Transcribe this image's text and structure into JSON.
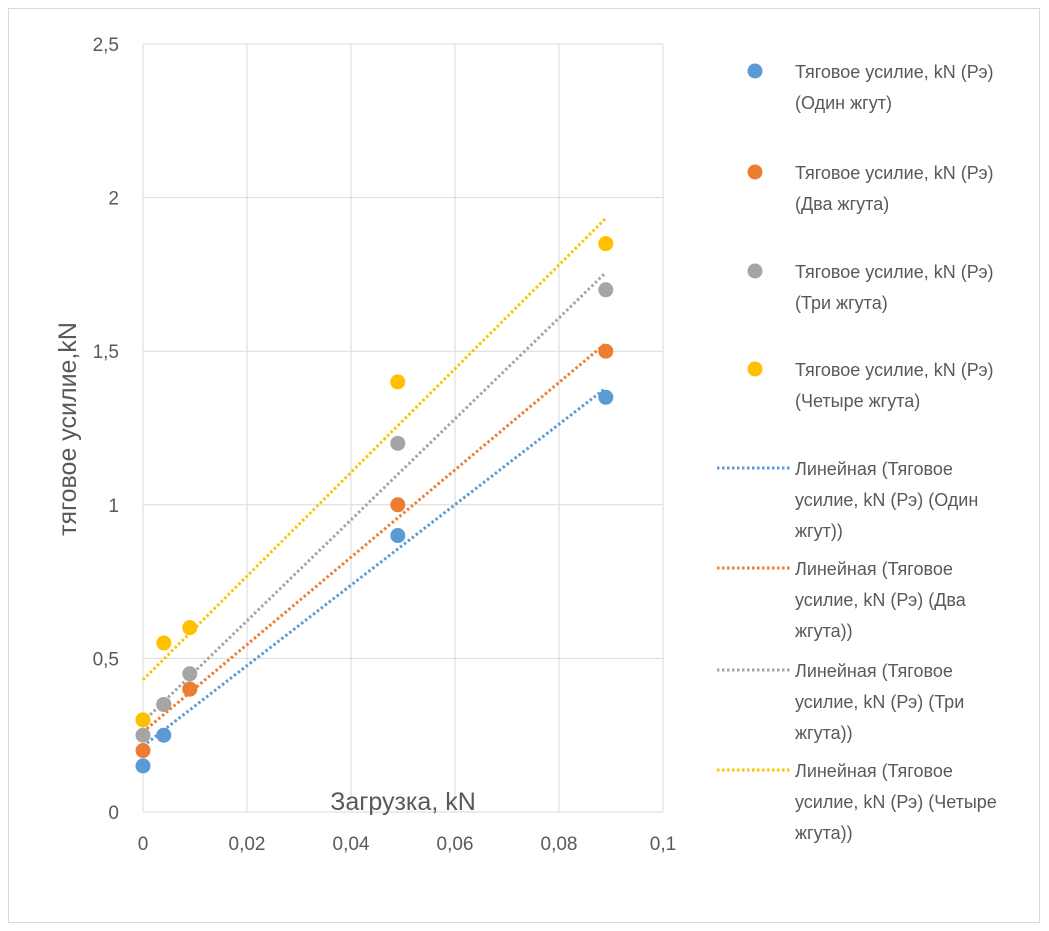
{
  "chart_data": {
    "type": "scatter",
    "title": "",
    "xlabel": "Загрузка, kN",
    "ylabel": "тяговое усилие,kN",
    "xlim": [
      0,
      0.1
    ],
    "ylim": [
      0,
      2.5
    ],
    "x_ticks": [
      0,
      0.02,
      0.04,
      0.06,
      0.08,
      0.1
    ],
    "y_ticks": [
      0,
      0.5,
      1,
      1.5,
      2,
      2.5
    ],
    "x_tick_labels": [
      "0",
      "0,02",
      "0,04",
      "0,06",
      "0,08",
      "0,1"
    ],
    "y_tick_labels": [
      "0",
      "0,5",
      "1",
      "1,5",
      "2",
      "2,5"
    ],
    "grid": true,
    "legend_position": "right",
    "series": [
      {
        "name_lines": [
          "Тяговое усилие, kN (Рэ)",
          "(Один жгут)"
        ],
        "color": "#5b9bd5",
        "x": [
          0,
          0.004,
          0.009,
          0.049,
          0.089
        ],
        "y": [
          0.15,
          0.25,
          0.4,
          0.9,
          1.35
        ]
      },
      {
        "name_lines": [
          "Тяговое усилие, kN (Рэ)",
          "(Два жгута)"
        ],
        "color": "#ed7d31",
        "x": [
          0,
          0.004,
          0.009,
          0.049,
          0.089
        ],
        "y": [
          0.2,
          0.35,
          0.4,
          1.0,
          1.5
        ]
      },
      {
        "name_lines": [
          "Тяговое усилие, kN (Рэ)",
          "(Три жгута)"
        ],
        "color": "#a5a5a5",
        "x": [
          0,
          0.004,
          0.009,
          0.049,
          0.089
        ],
        "y": [
          0.25,
          0.35,
          0.45,
          1.2,
          1.7
        ]
      },
      {
        "name_lines": [
          "Тяговое усилие, kN (Рэ)",
          "(Четыре жгута)"
        ],
        "color": "#ffc000",
        "x": [
          0,
          0.004,
          0.009,
          0.049,
          0.089
        ],
        "y": [
          0.3,
          0.55,
          0.6,
          1.4,
          1.85
        ]
      }
    ],
    "trendlines": [
      {
        "type": "linear",
        "color": "#5b9bd5",
        "label_lines": [
          "Линейная (Тяговое",
          "усилие, kN (Рэ) (Один",
          "жгут))"
        ],
        "x_range": [
          0,
          0.089
        ]
      },
      {
        "type": "linear",
        "color": "#ed7d31",
        "label_lines": [
          "Линейная (Тяговое",
          "усилие, kN (Рэ) (Два",
          "жгута))"
        ],
        "x_range": [
          0,
          0.089
        ]
      },
      {
        "type": "linear",
        "color": "#a5a5a5",
        "label_lines": [
          "Линейная (Тяговое",
          "усилие, kN (Рэ) (Три",
          "жгута))"
        ],
        "x_range": [
          0,
          0.089
        ]
      },
      {
        "type": "linear",
        "color": "#ffc000",
        "label_lines": [
          "Линейная (Тяговое",
          "усилие, kN (Рэ) (Четыре",
          "жгута))"
        ],
        "x_range": [
          0,
          0.089
        ]
      }
    ]
  }
}
